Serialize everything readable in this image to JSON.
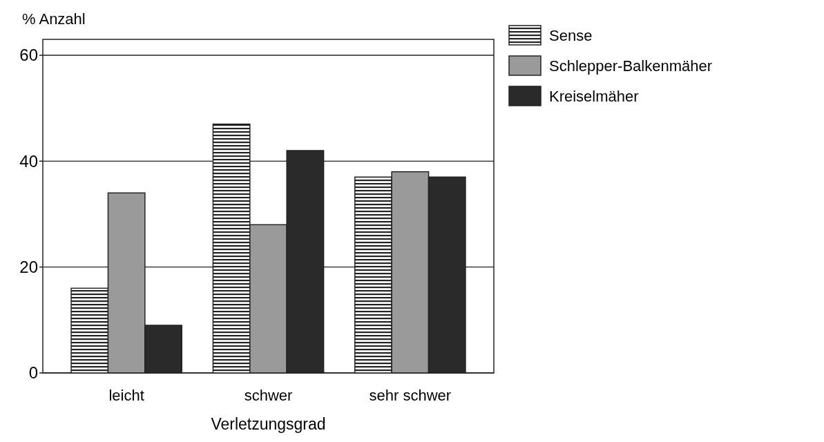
{
  "chart_data": {
    "type": "bar",
    "ylabel": "% Anzahl",
    "xlabel": "Verletzungsgrad",
    "categories": [
      "leicht",
      "schwer",
      "sehr schwer"
    ],
    "series": [
      {
        "name": "Sense",
        "color": "#222222",
        "values": [
          16,
          47,
          37
        ]
      },
      {
        "name": "Schlepper-Balkenmäher",
        "color": "#9a9a9a",
        "values": [
          34,
          28,
          38
        ]
      },
      {
        "name": "Kreiselmäher",
        "color": "#2a2a2a",
        "values": [
          9,
          42,
          37
        ]
      }
    ],
    "ylim": [
      0,
      63
    ],
    "yticks": [
      0,
      20,
      40,
      60
    ],
    "grid": "y",
    "legend": "top right"
  }
}
